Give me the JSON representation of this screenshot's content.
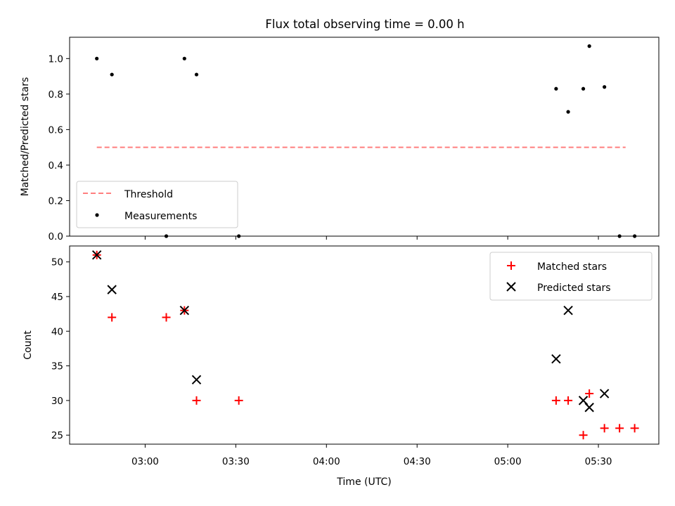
{
  "chart_data": [
    {
      "type": "scatter",
      "title": "Flux total observing time = 0.00 h",
      "xlabel": "",
      "ylabel": "Matched/Predicted stars",
      "ylim": [
        0,
        1.12
      ],
      "yticks": [
        "0.0",
        "0.2",
        "0.4",
        "0.6",
        "0.8",
        "1.0"
      ],
      "ytick_values": [
        0,
        0.2,
        0.4,
        0.6,
        0.8,
        1.0
      ],
      "legend_position": "lower-left",
      "threshold": {
        "name": "Threshold",
        "value": 0.5,
        "x_start": "02:44",
        "x_end": "05:39",
        "color": "#ff7f7f"
      },
      "series": [
        {
          "name": "Measurements",
          "color": "#000000",
          "points": [
            {
              "x": "02:44",
              "y": 1.0
            },
            {
              "x": "02:49",
              "y": 0.91
            },
            {
              "x": "03:07",
              "y": 0.0
            },
            {
              "x": "03:13",
              "y": 1.0
            },
            {
              "x": "03:17",
              "y": 0.91
            },
            {
              "x": "03:31",
              "y": 0.0
            },
            {
              "x": "05:16",
              "y": 0.83
            },
            {
              "x": "05:20",
              "y": 0.7
            },
            {
              "x": "05:25",
              "y": 0.83
            },
            {
              "x": "05:27",
              "y": 1.07
            },
            {
              "x": "05:32",
              "y": 0.84
            },
            {
              "x": "05:37",
              "y": 0.0
            },
            {
              "x": "05:42",
              "y": 0.0
            }
          ]
        }
      ]
    },
    {
      "type": "scatter",
      "title": "",
      "xlabel": "Time (UTC)",
      "ylabel": "Count",
      "ylim": [
        23.7,
        52.3
      ],
      "yticks": [
        "25",
        "30",
        "35",
        "40",
        "45",
        "50"
      ],
      "ytick_values": [
        25,
        30,
        35,
        40,
        45,
        50
      ],
      "xticks": [
        "03:00",
        "03:30",
        "04:00",
        "04:30",
        "05:00",
        "05:30"
      ],
      "legend_position": "upper-right",
      "series": [
        {
          "name": "Matched stars",
          "color": "#ff0000",
          "marker": "plus",
          "points": [
            {
              "x": "02:44",
              "y": 51
            },
            {
              "x": "02:49",
              "y": 42
            },
            {
              "x": "03:07",
              "y": 42
            },
            {
              "x": "03:13",
              "y": 43
            },
            {
              "x": "03:17",
              "y": 30
            },
            {
              "x": "03:31",
              "y": 30
            },
            {
              "x": "05:16",
              "y": 30
            },
            {
              "x": "05:20",
              "y": 30
            },
            {
              "x": "05:25",
              "y": 25
            },
            {
              "x": "05:27",
              "y": 31
            },
            {
              "x": "05:32",
              "y": 26
            },
            {
              "x": "05:37",
              "y": 26
            },
            {
              "x": "05:42",
              "y": 26
            }
          ]
        },
        {
          "name": "Predicted stars",
          "color": "#000000",
          "marker": "x",
          "points": [
            {
              "x": "02:44",
              "y": 51
            },
            {
              "x": "02:49",
              "y": 46
            },
            {
              "x": "03:13",
              "y": 43
            },
            {
              "x": "03:17",
              "y": 33
            },
            {
              "x": "05:16",
              "y": 36
            },
            {
              "x": "05:20",
              "y": 43
            },
            {
              "x": "05:25",
              "y": 30
            },
            {
              "x": "05:27",
              "y": 29
            },
            {
              "x": "05:32",
              "y": 31
            }
          ]
        }
      ]
    }
  ],
  "x_axis": {
    "xlim": [
      "02:35",
      "05:50"
    ]
  }
}
